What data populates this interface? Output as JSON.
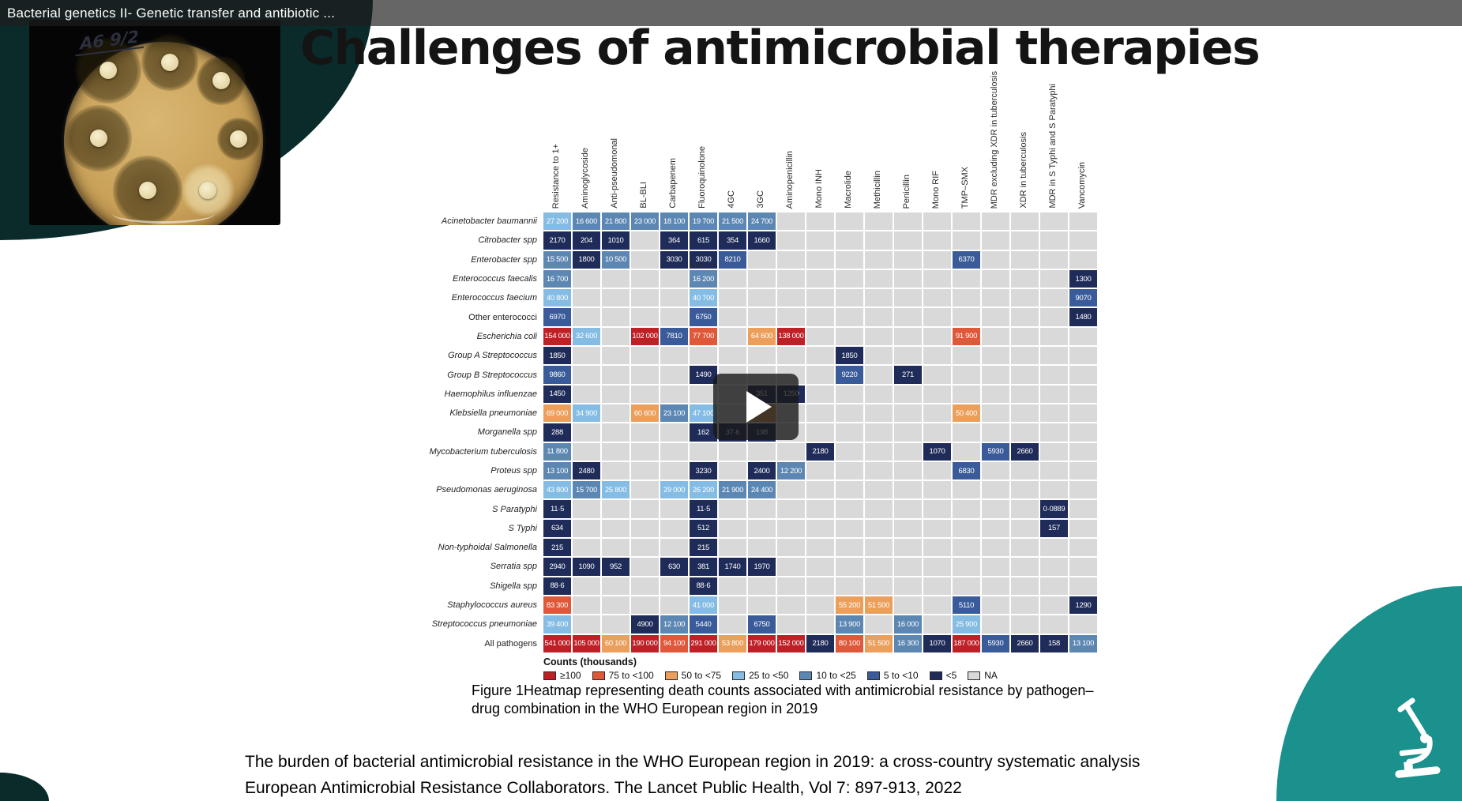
{
  "player": {
    "title": "Bacterial genetics II- Genetic transfer and antibiotic ..."
  },
  "slide": {
    "title": "Challenges of antimicrobial therapies",
    "petri_label": "A6 9/2",
    "caption_line1": "Figure 1Heatmap representing death counts associated with antimicrobial resistance by pathogen–",
    "caption_line2": "drug combination in the WHO European region in 2019",
    "citation_line1": "The burden of bacterial antimicrobial resistance in the WHO European region in 2019: a cross-country systematic analysis",
    "citation_line2": "European Antimicrobial Resistance Collaborators. The Lancet Public Health, Vol 7: 897-913, 2022"
  },
  "chart_data": {
    "type": "heatmap",
    "legend_title": "Counts (thousands)",
    "legend_position": "bottom-left",
    "na_color": "#d9d9d9",
    "legend": [
      {
        "label": "≥100",
        "color": "#bf2026"
      },
      {
        "label": "75 to <100",
        "color": "#e0583a"
      },
      {
        "label": "50 to <75",
        "color": "#eb9f5b"
      },
      {
        "label": "25 to <50",
        "color": "#85bce4"
      },
      {
        "label": "10 to <25",
        "color": "#5d87b3"
      },
      {
        "label": "5 to <10",
        "color": "#3a5b99"
      },
      {
        "label": "<5",
        "color": "#1f2b58"
      },
      {
        "label": "NA",
        "color": "#d9d9d9"
      }
    ],
    "columns": [
      "Resistance to 1+",
      "Aminoglycoside",
      "Anti-pseudomonal",
      "BL-BLI",
      "Carbapenem",
      "Fluoroquinolone",
      "4GC",
      "3GC",
      "Aminopenicillin",
      "Mono INH",
      "Macrolide",
      "Methicillin",
      "Penicillin",
      "Mono RIF",
      "TMP–SMX",
      "MDR excluding XDR in tuberculosis",
      "XDR in tuberculosis",
      "MDR in S Typhi and S Paratyphi",
      "Vancomycin"
    ],
    "rows": [
      {
        "label": "Acinetobacter baumannii",
        "italic": true,
        "cells": [
          [
            0,
            "27 200",
            "25 to <50"
          ],
          [
            1,
            "16 600",
            "10 to <25"
          ],
          [
            2,
            "21 800",
            "10 to <25"
          ],
          [
            3,
            "23 000",
            "10 to <25"
          ],
          [
            4,
            "18 100",
            "10 to <25"
          ],
          [
            5,
            "19 700",
            "10 to <25"
          ],
          [
            6,
            "21 500",
            "10 to <25"
          ],
          [
            7,
            "24 700",
            "10 to <25"
          ]
        ]
      },
      {
        "label": "Citrobacter spp",
        "italic": true,
        "cells": [
          [
            0,
            "2170",
            "<5"
          ],
          [
            1,
            "204",
            "<5"
          ],
          [
            2,
            "1010",
            "<5"
          ],
          [
            4,
            "364",
            "<5"
          ],
          [
            5,
            "615",
            "<5"
          ],
          [
            6,
            "354",
            "<5"
          ],
          [
            7,
            "1660",
            "<5"
          ]
        ]
      },
      {
        "label": "Enterobacter spp",
        "italic": true,
        "cells": [
          [
            0,
            "15 500",
            "10 to <25"
          ],
          [
            1,
            "1800",
            "<5"
          ],
          [
            2,
            "10 500",
            "10 to <25"
          ],
          [
            4,
            "3030",
            "<5"
          ],
          [
            5,
            "3030",
            "<5"
          ],
          [
            6,
            "8210",
            "5 to <10"
          ],
          [
            14,
            "6370",
            "5 to <10"
          ]
        ]
      },
      {
        "label": "Enterococcus faecalis",
        "italic": true,
        "cells": [
          [
            0,
            "16 700",
            "10 to <25"
          ],
          [
            5,
            "16 200",
            "10 to <25"
          ],
          [
            18,
            "1300",
            "<5"
          ]
        ]
      },
      {
        "label": "Enterococcus faecium",
        "italic": true,
        "cells": [
          [
            0,
            "40 800",
            "25 to <50"
          ],
          [
            5,
            "40 700",
            "25 to <50"
          ],
          [
            18,
            "9070",
            "5 to <10"
          ]
        ]
      },
      {
        "label": "Other enterococci",
        "italic": false,
        "cells": [
          [
            0,
            "6970",
            "5 to <10"
          ],
          [
            5,
            "6750",
            "5 to <10"
          ],
          [
            18,
            "1480",
            "<5"
          ]
        ]
      },
      {
        "label": "Escherichia coli",
        "italic": true,
        "cells": [
          [
            0,
            "154 000",
            "≥100"
          ],
          [
            1,
            "32 600",
            "25 to <50"
          ],
          [
            3,
            "102 000",
            "≥100"
          ],
          [
            4,
            "7810",
            "5 to <10"
          ],
          [
            5,
            "77 700",
            "75 to <100"
          ],
          [
            7,
            "64 600",
            "50 to <75"
          ],
          [
            8,
            "138 000",
            "≥100"
          ],
          [
            14,
            "91 900",
            "75 to <100"
          ]
        ]
      },
      {
        "label": "Group A Streptococcus",
        "italic": true,
        "cells": [
          [
            0,
            "1850",
            "<5"
          ],
          [
            10,
            "1850",
            "<5"
          ]
        ]
      },
      {
        "label": "Group B Streptococcus",
        "italic": true,
        "cells": [
          [
            0,
            "9860",
            "5 to <10"
          ],
          [
            5,
            "1490",
            "<5"
          ],
          [
            10,
            "9220",
            "5 to <10"
          ],
          [
            12,
            "271",
            "<5"
          ]
        ]
      },
      {
        "label": "Haemophilus influenzae",
        "italic": true,
        "cells": [
          [
            0,
            "1450",
            "<5"
          ],
          [
            7,
            "351",
            "<5"
          ],
          [
            8,
            "1250",
            "<5"
          ]
        ]
      },
      {
        "label": "Klebsiella pneumoniae",
        "italic": true,
        "cells": [
          [
            0,
            "69 000",
            "50 to <75"
          ],
          [
            1,
            "34 900",
            "25 to <50"
          ],
          [
            3,
            "60 600",
            "50 to <75"
          ],
          [
            4,
            "23 100",
            "10 to <25"
          ],
          [
            5,
            "47 100",
            "25 to <50"
          ],
          [
            7,
            "",
            "50 to <75"
          ],
          [
            14,
            "50 400",
            "50 to <75"
          ]
        ]
      },
      {
        "label": "Morganella spp",
        "italic": true,
        "cells": [
          [
            0,
            "288",
            "<5"
          ],
          [
            5,
            "162",
            "<5"
          ],
          [
            6,
            "37·6",
            "<5"
          ],
          [
            7,
            "198",
            "<5"
          ]
        ]
      },
      {
        "label": "Mycobacterium tuberculosis",
        "italic": true,
        "cells": [
          [
            0,
            "11 800",
            "10 to <25"
          ],
          [
            9,
            "2180",
            "<5"
          ],
          [
            13,
            "1070",
            "<5"
          ],
          [
            15,
            "5930",
            "5 to <10"
          ],
          [
            16,
            "2660",
            "<5"
          ]
        ]
      },
      {
        "label": "Proteus spp",
        "italic": true,
        "cells": [
          [
            0,
            "13 100",
            "10 to <25"
          ],
          [
            1,
            "2480",
            "<5"
          ],
          [
            5,
            "3230",
            "<5"
          ],
          [
            7,
            "2400",
            "<5"
          ],
          [
            8,
            "12 200",
            "10 to <25"
          ],
          [
            14,
            "6830",
            "5 to <10"
          ]
        ]
      },
      {
        "label": "Pseudomonas aeruginosa",
        "italic": true,
        "cells": [
          [
            0,
            "43 800",
            "25 to <50"
          ],
          [
            1,
            "15 700",
            "10 to <25"
          ],
          [
            2,
            "25 800",
            "25 to <50"
          ],
          [
            4,
            "29 000",
            "25 to <50"
          ],
          [
            5,
            "26 200",
            "25 to <50"
          ],
          [
            6,
            "21 900",
            "10 to <25"
          ],
          [
            7,
            "24 400",
            "10 to <25"
          ]
        ]
      },
      {
        "label": "S Paratyphi",
        "italic": true,
        "cells": [
          [
            0,
            "11·5",
            "<5"
          ],
          [
            5,
            "11·5",
            "<5"
          ],
          [
            17,
            "0·0889",
            "<5"
          ]
        ]
      },
      {
        "label": "S Typhi",
        "italic": true,
        "cells": [
          [
            0,
            "634",
            "<5"
          ],
          [
            5,
            "512",
            "<5"
          ],
          [
            17,
            "157",
            "<5"
          ]
        ]
      },
      {
        "label": "Non-typhoidal Salmonella",
        "italic": true,
        "cells": [
          [
            0,
            "215",
            "<5"
          ],
          [
            5,
            "215",
            "<5"
          ]
        ]
      },
      {
        "label": "Serratia spp",
        "italic": true,
        "cells": [
          [
            0,
            "2940",
            "<5"
          ],
          [
            1,
            "1090",
            "<5"
          ],
          [
            2,
            "952",
            "<5"
          ],
          [
            4,
            "630",
            "<5"
          ],
          [
            5,
            "381",
            "<5"
          ],
          [
            6,
            "1740",
            "<5"
          ],
          [
            7,
            "1970",
            "<5"
          ]
        ]
      },
      {
        "label": "Shigella spp",
        "italic": true,
        "cells": [
          [
            0,
            "88·6",
            "<5"
          ],
          [
            5,
            "88·6",
            "<5"
          ]
        ]
      },
      {
        "label": "Staphylococcus aureus",
        "italic": true,
        "cells": [
          [
            0,
            "83 300",
            "75 to <100"
          ],
          [
            5,
            "41 000",
            "25 to <50"
          ],
          [
            10,
            "55 200",
            "50 to <75"
          ],
          [
            11,
            "51 500",
            "50 to <75"
          ],
          [
            14,
            "5110",
            "5 to <10"
          ],
          [
            18,
            "1290",
            "<5"
          ]
        ]
      },
      {
        "label": "Streptococcus pneumoniae",
        "italic": true,
        "cells": [
          [
            0,
            "39 400",
            "25 to <50"
          ],
          [
            3,
            "4900",
            "<5"
          ],
          [
            4,
            "12 100",
            "10 to <25"
          ],
          [
            5,
            "5440",
            "5 to <10"
          ],
          [
            7,
            "6750",
            "5 to <10"
          ],
          [
            10,
            "13 900",
            "10 to <25"
          ],
          [
            12,
            "16 000",
            "10 to <25"
          ],
          [
            14,
            "25 900",
            "25 to <50"
          ]
        ]
      },
      {
        "label": "All pathogens",
        "italic": false,
        "cells": [
          [
            0,
            "541 000",
            "≥100"
          ],
          [
            1,
            "105 000",
            "≥100"
          ],
          [
            2,
            "60 100",
            "50 to <75"
          ],
          [
            3,
            "190 000",
            "≥100"
          ],
          [
            4,
            "94 100",
            "75 to <100"
          ],
          [
            5,
            "291 000",
            "≥100"
          ],
          [
            6,
            "53 800",
            "50 to <75"
          ],
          [
            7,
            "179 000",
            "≥100"
          ],
          [
            8,
            "152 000",
            "≥100"
          ],
          [
            9,
            "2180",
            "<5"
          ],
          [
            10,
            "80 100",
            "75 to <100"
          ],
          [
            11,
            "51 500",
            "50 to <75"
          ],
          [
            12,
            "16 300",
            "10 to <25"
          ],
          [
            13,
            "1070",
            "<5"
          ],
          [
            14,
            "187 000",
            "≥100"
          ],
          [
            15,
            "5930",
            "5 to <10"
          ],
          [
            16,
            "2660",
            "<5"
          ],
          [
            17,
            "158",
            "<5"
          ],
          [
            18,
            "13 100",
            "10 to <25"
          ]
        ]
      }
    ]
  }
}
